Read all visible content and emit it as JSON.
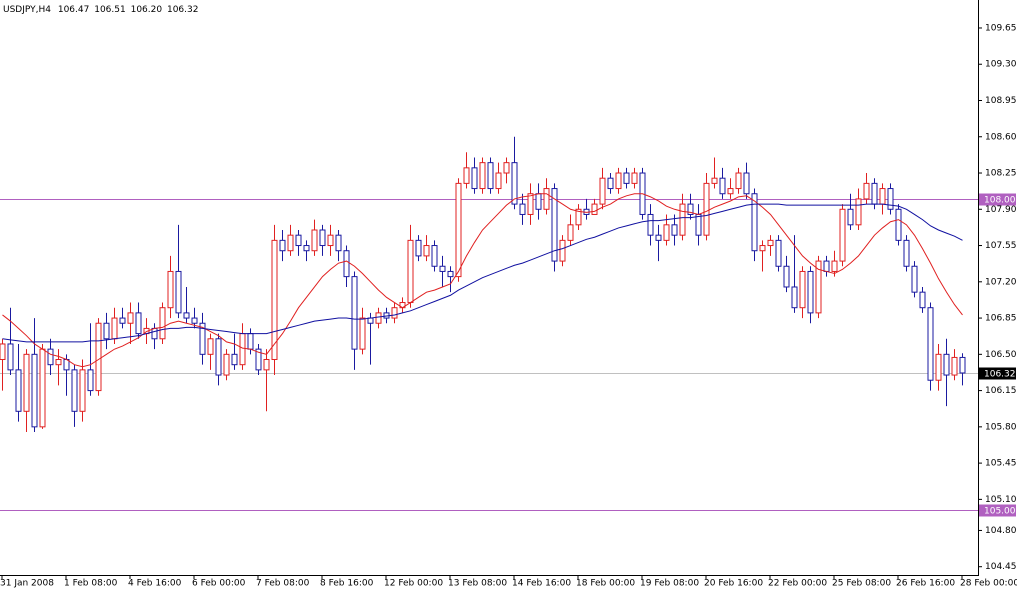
{
  "chart_data": {
    "type": "candlestick",
    "title": "USDJPY,H4",
    "quote_labels": [
      "106.47",
      "106.51",
      "106.20",
      "106.32"
    ],
    "categories": [
      "31 Jan 2008",
      null,
      null,
      null,
      null,
      null,
      null,
      null,
      "1 Feb 08:00",
      null,
      null,
      null,
      null,
      null,
      null,
      null,
      "4 Feb 16:00",
      null,
      null,
      null,
      null,
      null,
      null,
      null,
      "6 Feb 00:00",
      null,
      null,
      null,
      null,
      null,
      null,
      null,
      "7 Feb 08:00",
      null,
      null,
      null,
      null,
      null,
      null,
      null,
      "8 Feb 16:00",
      null,
      null,
      null,
      null,
      null,
      null,
      null,
      "12 Feb 00:00",
      null,
      null,
      null,
      null,
      null,
      null,
      null,
      "13 Feb 08:00",
      null,
      null,
      null,
      null,
      null,
      null,
      null,
      "14 Feb 16:00",
      null,
      null,
      null,
      null,
      null,
      null,
      null,
      "18 Feb 00:00",
      null,
      null,
      null,
      null,
      null,
      null,
      null,
      "19 Feb 08:00",
      null,
      null,
      null,
      null,
      null,
      null,
      null,
      "20 Feb 16:00",
      null,
      null,
      null,
      null,
      null,
      null,
      null,
      "22 Feb 00:00",
      null,
      null,
      null,
      null,
      null,
      null,
      null,
      "25 Feb 08:00",
      null,
      null,
      null,
      null,
      null,
      null,
      null,
      "26 Feb 16:00",
      null,
      null,
      null,
      null,
      null,
      null,
      null,
      "28 Feb 00:00"
    ],
    "open": [
      106.45,
      106.6,
      106.35,
      105.95,
      106.5,
      105.8,
      106.55,
      106.4,
      106.45,
      106.35,
      105.95,
      106.35,
      106.15,
      106.8,
      106.65,
      106.85,
      106.8,
      106.9,
      106.7,
      106.75,
      106.65,
      106.95,
      107.3,
      106.9,
      106.85,
      106.8,
      106.5,
      106.65,
      106.3,
      106.5,
      106.4,
      106.7,
      106.55,
      106.35,
      106.45,
      107.6,
      107.5,
      107.65,
      107.55,
      107.5,
      107.7,
      107.55,
      107.65,
      107.5,
      107.25,
      106.55,
      106.85,
      106.8,
      106.9,
      106.85,
      106.95,
      107.0,
      107.6,
      107.45,
      107.55,
      107.35,
      107.3,
      107.25,
      108.15,
      108.3,
      108.1,
      108.35,
      108.1,
      108.25,
      108.35,
      107.95,
      107.85,
      108.05,
      107.9,
      108.1,
      107.4,
      107.6,
      107.75,
      107.9,
      107.85,
      107.95,
      108.2,
      108.1,
      108.25,
      108.15,
      108.25,
      107.85,
      107.65,
      107.6,
      107.75,
      107.65,
      107.95,
      107.85,
      107.65,
      108.15,
      108.2,
      108.05,
      108.1,
      108.25,
      108.05,
      107.5,
      107.55,
      107.6,
      107.35,
      107.15,
      106.95,
      107.3,
      106.9,
      107.4,
      107.3,
      107.4,
      107.9,
      107.75,
      108.0,
      108.15,
      107.95,
      108.1,
      107.9,
      107.6,
      107.35,
      107.1,
      106.95,
      106.25,
      106.5,
      106.3,
      106.47
    ],
    "high": [
      106.65,
      106.95,
      106.6,
      106.55,
      106.85,
      106.6,
      106.65,
      106.55,
      106.5,
      106.4,
      106.45,
      106.8,
      106.85,
      106.9,
      106.95,
      106.95,
      107.0,
      107.0,
      106.85,
      106.8,
      107.0,
      107.45,
      107.75,
      107.15,
      106.95,
      106.9,
      106.7,
      106.7,
      106.55,
      106.7,
      106.8,
      106.75,
      106.6,
      106.55,
      107.75,
      107.7,
      107.75,
      107.7,
      107.6,
      107.8,
      107.75,
      107.75,
      107.7,
      107.55,
      107.3,
      106.95,
      106.9,
      106.95,
      106.95,
      107.0,
      107.05,
      107.75,
      107.65,
      107.65,
      107.6,
      107.45,
      107.35,
      108.2,
      108.45,
      108.4,
      108.4,
      108.4,
      108.35,
      108.4,
      108.6,
      108.05,
      108.15,
      108.15,
      108.2,
      108.15,
      107.65,
      107.85,
      107.95,
      108.0,
      108.0,
      108.3,
      108.25,
      108.3,
      108.3,
      108.3,
      108.3,
      107.95,
      107.75,
      107.85,
      107.85,
      108.05,
      108.05,
      107.95,
      108.25,
      108.4,
      108.3,
      108.2,
      108.3,
      108.35,
      108.1,
      107.6,
      107.65,
      107.65,
      107.45,
      107.65,
      107.35,
      107.35,
      107.45,
      107.45,
      107.5,
      107.95,
      108.05,
      108.1,
      108.25,
      108.2,
      108.15,
      108.15,
      107.95,
      107.65,
      107.4,
      107.15,
      107.0,
      106.6,
      106.65,
      106.55,
      106.51
    ],
    "low": [
      106.15,
      106.3,
      105.85,
      105.75,
      105.75,
      105.78,
      106.3,
      106.2,
      106.1,
      105.8,
      105.85,
      106.1,
      106.1,
      106.55,
      106.6,
      106.75,
      106.6,
      106.65,
      106.6,
      106.55,
      106.6,
      106.85,
      106.85,
      106.8,
      106.75,
      106.4,
      106.35,
      106.2,
      106.25,
      106.35,
      106.35,
      106.5,
      106.3,
      105.95,
      106.3,
      107.4,
      107.45,
      107.45,
      107.4,
      107.45,
      107.45,
      107.45,
      107.4,
      107.15,
      106.35,
      106.5,
      106.4,
      106.75,
      106.8,
      106.8,
      106.9,
      106.95,
      107.4,
      107.4,
      107.3,
      107.15,
      107.1,
      107.2,
      108.1,
      108.05,
      108.05,
      108.05,
      108.05,
      108.15,
      107.9,
      107.75,
      107.75,
      107.8,
      107.85,
      107.3,
      107.35,
      107.55,
      107.7,
      107.8,
      107.85,
      107.9,
      108.05,
      108.05,
      108.1,
      108.1,
      107.8,
      107.55,
      107.4,
      107.55,
      107.55,
      107.6,
      107.8,
      107.55,
      107.6,
      108.1,
      108.0,
      108.0,
      108.05,
      108.0,
      107.4,
      107.3,
      107.45,
      107.3,
      107.1,
      106.9,
      106.85,
      106.8,
      106.85,
      107.25,
      107.25,
      107.35,
      107.7,
      107.7,
      107.95,
      107.9,
      107.85,
      107.85,
      107.55,
      107.3,
      107.05,
      106.9,
      106.15,
      106.15,
      106.0,
      106.25,
      106.2
    ],
    "close": [
      106.6,
      106.35,
      105.95,
      106.5,
      105.8,
      106.55,
      106.4,
      106.45,
      106.35,
      105.95,
      106.35,
      106.15,
      106.8,
      106.65,
      106.85,
      106.8,
      106.9,
      106.7,
      106.75,
      106.65,
      106.95,
      107.3,
      106.9,
      106.85,
      106.8,
      106.5,
      106.65,
      106.3,
      106.5,
      106.4,
      106.7,
      106.55,
      106.35,
      106.45,
      107.6,
      107.5,
      107.65,
      107.55,
      107.5,
      107.7,
      107.55,
      107.65,
      107.5,
      107.25,
      106.55,
      106.85,
      106.8,
      106.9,
      106.85,
      106.95,
      107.0,
      107.6,
      107.45,
      107.55,
      107.35,
      107.3,
      107.25,
      108.15,
      108.3,
      108.1,
      108.35,
      108.1,
      108.25,
      108.35,
      107.95,
      107.85,
      108.05,
      107.9,
      108.1,
      107.4,
      107.6,
      107.75,
      107.9,
      107.85,
      107.95,
      108.2,
      108.1,
      108.25,
      108.15,
      108.25,
      107.85,
      107.65,
      107.6,
      107.75,
      107.65,
      107.95,
      107.85,
      107.65,
      108.15,
      108.2,
      108.05,
      108.1,
      108.25,
      108.05,
      107.5,
      107.55,
      107.6,
      107.35,
      107.15,
      106.95,
      107.3,
      106.9,
      107.4,
      107.3,
      107.4,
      107.9,
      107.75,
      108.0,
      108.15,
      107.95,
      108.1,
      107.9,
      107.6,
      107.35,
      107.1,
      106.95,
      106.25,
      106.5,
      106.3,
      106.47,
      106.32
    ],
    "up_color": "#e02020",
    "down_color": "#1a1aa0",
    "moving_averages": [
      {
        "color": "#e02020",
        "values": [
          106.88,
          106.82,
          106.75,
          106.68,
          106.6,
          106.55,
          106.5,
          106.48,
          106.45,
          106.4,
          106.38,
          106.4,
          106.45,
          106.5,
          106.55,
          106.58,
          106.62,
          106.66,
          106.72,
          106.75,
          106.76,
          106.8,
          106.82,
          106.8,
          106.78,
          106.76,
          106.72,
          106.68,
          106.62,
          106.6,
          106.56,
          106.55,
          106.52,
          106.5,
          106.6,
          106.7,
          106.82,
          106.95,
          107.05,
          107.15,
          107.25,
          107.32,
          107.38,
          107.4,
          107.35,
          107.28,
          107.2,
          107.12,
          107.05,
          107.0,
          106.95,
          107.0,
          107.05,
          107.1,
          107.12,
          107.15,
          107.18,
          107.3,
          107.45,
          107.58,
          107.7,
          107.78,
          107.86,
          107.94,
          108.0,
          108.02,
          108.03,
          108.05,
          108.05,
          108.0,
          107.95,
          107.9,
          107.88,
          107.87,
          107.88,
          107.92,
          107.95,
          108.0,
          108.03,
          108.05,
          108.05,
          108.02,
          107.98,
          107.93,
          107.9,
          107.88,
          107.87,
          107.85,
          107.88,
          107.92,
          107.95,
          107.98,
          108.02,
          108.03,
          107.98,
          107.92,
          107.85,
          107.75,
          107.65,
          107.55,
          107.45,
          107.38,
          107.32,
          107.3,
          107.28,
          107.32,
          107.38,
          107.45,
          107.55,
          107.65,
          107.72,
          107.78,
          107.8,
          107.75,
          107.65,
          107.52,
          107.38,
          107.23,
          107.1,
          106.98,
          106.88
        ]
      },
      {
        "color": "#1010a0",
        "values": [
          106.65,
          106.64,
          106.63,
          106.62,
          106.62,
          106.62,
          106.62,
          106.62,
          106.62,
          106.62,
          106.62,
          106.63,
          106.63,
          106.64,
          106.65,
          106.66,
          106.67,
          106.68,
          106.7,
          106.72,
          106.74,
          106.75,
          106.75,
          106.76,
          106.76,
          106.75,
          106.74,
          106.73,
          106.72,
          106.71,
          106.7,
          106.7,
          106.7,
          106.7,
          106.72,
          106.74,
          106.76,
          106.78,
          106.8,
          106.82,
          106.83,
          106.84,
          106.85,
          106.85,
          106.84,
          106.84,
          106.85,
          106.86,
          106.87,
          106.88,
          106.9,
          106.92,
          106.95,
          106.98,
          107.01,
          107.04,
          107.07,
          107.12,
          107.16,
          107.2,
          107.24,
          107.27,
          107.3,
          107.33,
          107.36,
          107.38,
          107.41,
          107.44,
          107.47,
          107.5,
          107.52,
          107.55,
          107.58,
          107.61,
          107.63,
          107.66,
          107.69,
          107.72,
          107.74,
          107.76,
          107.78,
          107.79,
          107.79,
          107.8,
          107.81,
          107.82,
          107.82,
          107.83,
          107.84,
          107.86,
          107.88,
          107.9,
          107.92,
          107.94,
          107.95,
          107.95,
          107.95,
          107.95,
          107.94,
          107.94,
          107.94,
          107.94,
          107.94,
          107.94,
          107.94,
          107.94,
          107.94,
          107.94,
          107.95,
          107.95,
          107.95,
          107.94,
          107.93,
          107.9,
          107.85,
          107.8,
          107.74,
          107.7,
          107.67,
          107.64,
          107.6
        ]
      }
    ],
    "levels": [
      {
        "value": 108.0,
        "label": "108.00",
        "color": "#b060c0"
      },
      {
        "value": 106.32,
        "label": "106.32",
        "color": "#c0c0c0"
      },
      {
        "value": 105.0,
        "label": "105.00",
        "color": "#b060c0"
      }
    ],
    "ylim": [
      104.37,
      109.92
    ],
    "yticks": [
      109.65,
      {
        "value": 109.3,
        "label": "109.30"
      },
      108.95,
      {
        "value": 108.6,
        "label": "108.60"
      },
      108.25,
      {
        "value": 107.9,
        "label": "107.90"
      },
      107.55,
      {
        "value": 107.2,
        "label": "107.20"
      },
      106.85,
      {
        "value": 106.5,
        "label": "106.50"
      },
      106.15,
      {
        "value": 105.8,
        "label": "105.80"
      },
      105.45,
      {
        "value": 105.1,
        "label": "105.10"
      },
      {
        "value": 104.8,
        "label": "104.80"
      },
      104.45
    ]
  }
}
